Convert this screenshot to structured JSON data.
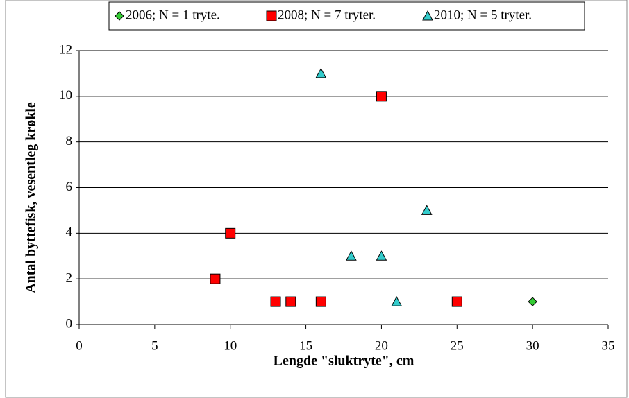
{
  "chart_data": {
    "type": "scatter",
    "x_label": "Lengde \"sluktryte\", cm",
    "y_label": "Antal byttefisk, vesentleg krøkle",
    "xlim": [
      0,
      35
    ],
    "xticks": [
      0,
      5,
      10,
      15,
      20,
      25,
      30,
      35
    ],
    "ylim": [
      0,
      12
    ],
    "yticks": [
      0,
      2,
      4,
      6,
      8,
      10,
      12
    ],
    "grid": true,
    "legend": "top",
    "series": [
      {
        "name": "2006; N =  1 tryte.",
        "color": "#33cc33",
        "marker": "diamond",
        "x": [
          30
        ],
        "values": [
          1
        ]
      },
      {
        "name": "2008; N =  7 tryter.",
        "color": "#ff0000",
        "marker": "square",
        "x": [
          9,
          10,
          13,
          14,
          16,
          20,
          25
        ],
        "values": [
          2,
          4,
          1,
          1,
          1,
          10,
          1
        ]
      },
      {
        "name": "2010; N = 5 tryter.",
        "color": "#33cccc",
        "marker": "triangle",
        "x": [
          16,
          18,
          20,
          21,
          23
        ],
        "values": [
          11,
          3,
          3,
          1,
          5
        ]
      }
    ]
  }
}
